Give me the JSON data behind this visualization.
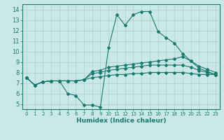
{
  "xlabel": "Humidex (Indice chaleur)",
  "ylabel": "",
  "xlim": [
    -0.5,
    23.5
  ],
  "ylim": [
    4.5,
    14.5
  ],
  "xticks": [
    0,
    1,
    2,
    3,
    4,
    5,
    6,
    7,
    8,
    9,
    10,
    11,
    12,
    13,
    14,
    15,
    16,
    17,
    18,
    19,
    20,
    21,
    22,
    23
  ],
  "yticks": [
    5,
    6,
    7,
    8,
    9,
    10,
    11,
    12,
    13,
    14
  ],
  "bg_color": "#c9e8e6",
  "line_color": "#1a7a6e",
  "grid_color": "#b0d4d0",
  "lines": [
    {
      "x": [
        0,
        1,
        2,
        3,
        4,
        5,
        6,
        7,
        8,
        9,
        10,
        11,
        12,
        13,
        14,
        15,
        16,
        17,
        18,
        19,
        20,
        21,
        22,
        23
      ],
      "y": [
        7.5,
        6.8,
        7.1,
        7.2,
        7.2,
        6.0,
        5.8,
        4.9,
        4.9,
        4.7,
        10.4,
        13.5,
        12.5,
        13.5,
        13.8,
        13.8,
        11.9,
        11.3,
        10.8,
        9.8,
        9.1,
        8.4,
        8.1,
        7.8
      ]
    },
    {
      "x": [
        0,
        1,
        2,
        3,
        4,
        5,
        6,
        7,
        8,
        9,
        10,
        11,
        12,
        13,
        14,
        15,
        16,
        17,
        18,
        19,
        20,
        21,
        22,
        23
      ],
      "y": [
        7.5,
        6.8,
        7.1,
        7.2,
        7.2,
        7.2,
        7.2,
        7.3,
        8.1,
        8.2,
        8.5,
        8.6,
        8.7,
        8.8,
        8.9,
        9.0,
        9.1,
        9.2,
        9.3,
        9.5,
        9.1,
        8.6,
        8.3,
        8.0
      ]
    },
    {
      "x": [
        0,
        1,
        2,
        3,
        4,
        5,
        6,
        7,
        8,
        9,
        10,
        11,
        12,
        13,
        14,
        15,
        16,
        17,
        18,
        19,
        20,
        21,
        22,
        23
      ],
      "y": [
        7.5,
        6.8,
        7.1,
        7.2,
        7.2,
        7.2,
        7.2,
        7.3,
        7.9,
        8.0,
        8.2,
        8.3,
        8.4,
        8.5,
        8.6,
        8.7,
        8.7,
        8.7,
        8.7,
        8.7,
        8.5,
        8.2,
        8.0,
        7.8
      ]
    },
    {
      "x": [
        0,
        1,
        2,
        3,
        4,
        5,
        6,
        7,
        8,
        9,
        10,
        11,
        12,
        13,
        14,
        15,
        16,
        17,
        18,
        19,
        20,
        21,
        22,
        23
      ],
      "y": [
        7.5,
        6.8,
        7.1,
        7.2,
        7.2,
        7.2,
        7.2,
        7.3,
        7.5,
        7.6,
        7.7,
        7.8,
        7.8,
        7.9,
        7.9,
        8.0,
        8.0,
        8.0,
        8.0,
        8.0,
        7.9,
        7.8,
        7.8,
        7.8
      ]
    }
  ]
}
